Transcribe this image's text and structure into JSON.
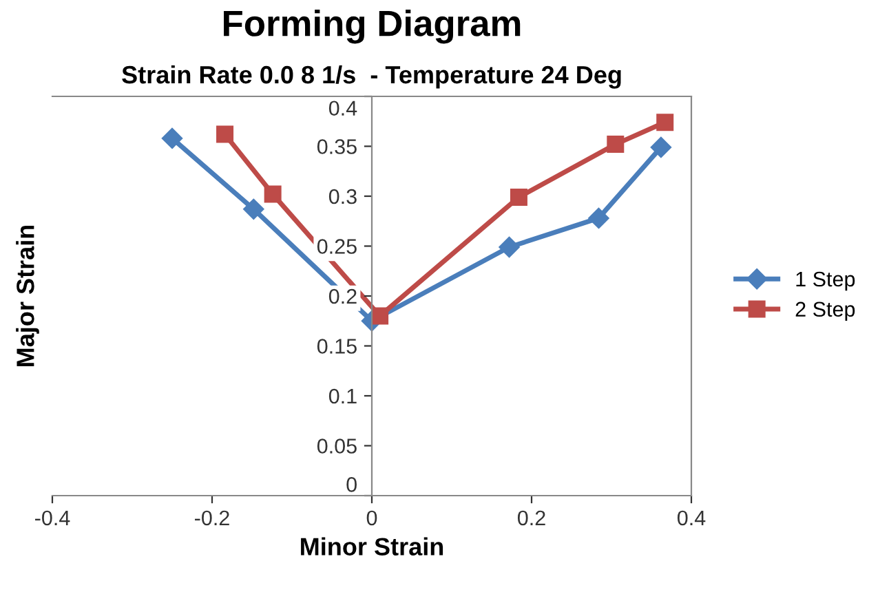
{
  "chart_data": {
    "type": "line",
    "title": "Forming Diagram",
    "subtitle": "Strain Rate 0.0 8 1/s  - Temperature 24 Deg",
    "xlabel": "Minor Strain",
    "ylabel": "Major Strain",
    "series": [
      {
        "name": "1 Step",
        "color": "#4a7ebb",
        "marker": "diamond",
        "x": [
          -0.25,
          -0.148,
          0.0,
          0.172,
          0.284,
          0.362
        ],
        "values": [
          0.358,
          0.287,
          0.175,
          0.249,
          0.278,
          0.349
        ]
      },
      {
        "name": "2 Step",
        "color": "#be4b48",
        "marker": "square",
        "x": [
          -0.184,
          -0.124,
          0.01,
          0.184,
          0.305,
          0.367
        ],
        "values": [
          0.362,
          0.302,
          0.18,
          0.299,
          0.352,
          0.374
        ]
      }
    ],
    "xlim": [
      -0.4,
      0.4
    ],
    "xticks": [
      -0.4,
      -0.2,
      0,
      0.2,
      0.4
    ],
    "ylim": [
      0,
      0.4
    ],
    "yticks": [
      0,
      0.05,
      0.1,
      0.15,
      0.2,
      0.25,
      0.3,
      0.35,
      0.4
    ],
    "grid": false,
    "legend": "right",
    "line_style": "solid"
  }
}
